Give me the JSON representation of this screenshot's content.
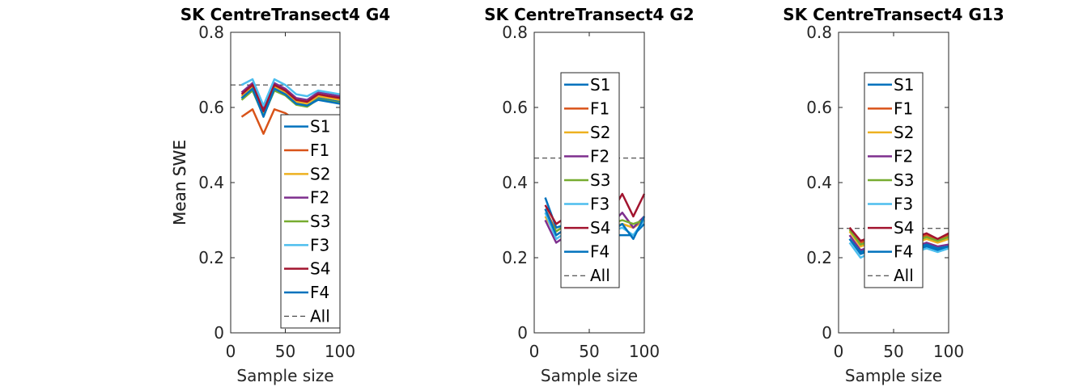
{
  "chart_data": [
    {
      "type": "line",
      "title": "SK CentreTransect4 G4",
      "xlabel": "Sample size",
      "ylabel": "Mean SWE",
      "xlim": [
        0,
        100
      ],
      "ylim": [
        0,
        0.8
      ],
      "xticks": [
        0,
        50,
        100
      ],
      "yticks": [
        0,
        0.2,
        0.4,
        0.6,
        0.8
      ],
      "x": [
        10,
        20,
        30,
        40,
        50,
        60,
        70,
        80,
        90,
        100
      ],
      "all_value": 0.66,
      "legend_position": "bottom-right",
      "series": [
        {
          "name": "S1",
          "values": [
            0.625,
            0.65,
            0.58,
            0.65,
            0.635,
            0.61,
            0.605,
            0.625,
            0.62,
            0.615
          ]
        },
        {
          "name": "F1",
          "values": [
            0.575,
            0.595,
            0.53,
            0.595,
            0.585,
            0.565,
            0.56,
            0.575,
            0.57,
            0.565
          ]
        },
        {
          "name": "S2",
          "values": [
            0.63,
            0.655,
            0.585,
            0.655,
            0.64,
            0.615,
            0.61,
            0.63,
            0.625,
            0.62
          ]
        },
        {
          "name": "F2",
          "values": [
            0.64,
            0.665,
            0.595,
            0.665,
            0.65,
            0.625,
            0.62,
            0.64,
            0.635,
            0.63
          ]
        },
        {
          "name": "S3",
          "values": [
            0.62,
            0.645,
            0.578,
            0.645,
            0.632,
            0.607,
            0.602,
            0.622,
            0.617,
            0.612
          ]
        },
        {
          "name": "F3",
          "values": [
            0.66,
            0.675,
            0.605,
            0.675,
            0.66,
            0.635,
            0.63,
            0.645,
            0.64,
            0.635
          ]
        },
        {
          "name": "S4",
          "values": [
            0.635,
            0.66,
            0.59,
            0.66,
            0.645,
            0.62,
            0.615,
            0.635,
            0.63,
            0.625
          ]
        },
        {
          "name": "F4",
          "values": [
            0.625,
            0.65,
            0.575,
            0.65,
            0.635,
            0.61,
            0.605,
            0.62,
            0.615,
            0.61
          ]
        }
      ]
    },
    {
      "type": "line",
      "title": "SK CentreTransect4 G2",
      "xlabel": "Sample size",
      "ylabel": "Mean SWE",
      "xlim": [
        0,
        100
      ],
      "ylim": [
        0,
        0.8
      ],
      "xticks": [
        0,
        50,
        100
      ],
      "yticks": [
        0,
        0.2,
        0.4,
        0.6,
        0.8
      ],
      "x": [
        10,
        20,
        30,
        40,
        50,
        60,
        70,
        80,
        90,
        100
      ],
      "all_value": 0.465,
      "legend_position": "center",
      "series": [
        {
          "name": "S1",
          "values": [
            0.36,
            0.28,
            0.29,
            0.29,
            0.28,
            0.27,
            0.26,
            0.26,
            0.26,
            0.29
          ]
        },
        {
          "name": "F1",
          "values": [
            0.33,
            0.27,
            0.29,
            0.3,
            0.29,
            0.28,
            0.28,
            0.29,
            0.28,
            0.3
          ]
        },
        {
          "name": "S2",
          "values": [
            0.31,
            0.26,
            0.28,
            0.29,
            0.29,
            0.28,
            0.28,
            0.29,
            0.28,
            0.3
          ]
        },
        {
          "name": "F2",
          "values": [
            0.3,
            0.24,
            0.26,
            0.28,
            0.28,
            0.28,
            0.29,
            0.32,
            0.28,
            0.31
          ]
        },
        {
          "name": "S3",
          "values": [
            0.32,
            0.27,
            0.29,
            0.3,
            0.29,
            0.29,
            0.29,
            0.3,
            0.29,
            0.3
          ]
        },
        {
          "name": "F3",
          "values": [
            0.32,
            0.25,
            0.27,
            0.28,
            0.28,
            0.27,
            0.27,
            0.28,
            0.26,
            0.3
          ]
        },
        {
          "name": "S4",
          "values": [
            0.34,
            0.29,
            0.31,
            0.32,
            0.31,
            0.3,
            0.32,
            0.37,
            0.31,
            0.37
          ]
        },
        {
          "name": "F4",
          "values": [
            0.33,
            0.26,
            0.28,
            0.29,
            0.28,
            0.27,
            0.27,
            0.29,
            0.25,
            0.31
          ]
        }
      ]
    },
    {
      "type": "line",
      "title": "SK CentreTransect4 G13",
      "xlabel": "Sample size",
      "ylabel": "Mean SWE",
      "xlim": [
        0,
        100
      ],
      "ylim": [
        0,
        0.8
      ],
      "xticks": [
        0,
        50,
        100
      ],
      "yticks": [
        0,
        0.2,
        0.4,
        0.6,
        0.8
      ],
      "x": [
        10,
        20,
        30,
        40,
        50,
        60,
        70,
        80,
        90,
        100
      ],
      "all_value": 0.278,
      "legend_position": "center",
      "series": [
        {
          "name": "S1",
          "values": [
            0.25,
            0.21,
            0.22,
            0.23,
            0.23,
            0.22,
            0.22,
            0.23,
            0.22,
            0.23
          ]
        },
        {
          "name": "F1",
          "values": [
            0.28,
            0.24,
            0.25,
            0.26,
            0.26,
            0.25,
            0.25,
            0.26,
            0.25,
            0.26
          ]
        },
        {
          "name": "S2",
          "values": [
            0.27,
            0.23,
            0.24,
            0.25,
            0.25,
            0.24,
            0.24,
            0.25,
            0.24,
            0.25
          ]
        },
        {
          "name": "F2",
          "values": [
            0.26,
            0.22,
            0.23,
            0.24,
            0.24,
            0.23,
            0.23,
            0.24,
            0.23,
            0.235
          ]
        },
        {
          "name": "S3",
          "values": [
            0.275,
            0.235,
            0.245,
            0.255,
            0.255,
            0.245,
            0.245,
            0.255,
            0.245,
            0.255
          ]
        },
        {
          "name": "F3",
          "values": [
            0.24,
            0.2,
            0.215,
            0.225,
            0.225,
            0.215,
            0.215,
            0.225,
            0.215,
            0.225
          ]
        },
        {
          "name": "S4",
          "values": [
            0.28,
            0.245,
            0.255,
            0.265,
            0.265,
            0.255,
            0.255,
            0.265,
            0.25,
            0.265
          ]
        },
        {
          "name": "F4",
          "values": [
            0.25,
            0.215,
            0.225,
            0.235,
            0.235,
            0.225,
            0.225,
            0.235,
            0.225,
            0.23
          ]
        }
      ]
    }
  ],
  "series_colors": {
    "S1": "#0072BD",
    "F1": "#D95319",
    "S2": "#EDB120",
    "F2": "#7E2F8E",
    "S3": "#77AC30",
    "F3": "#4DBEEE",
    "S4": "#A2142F",
    "F4": "#0072BD"
  },
  "all_label": "All",
  "all_color": "#262626"
}
